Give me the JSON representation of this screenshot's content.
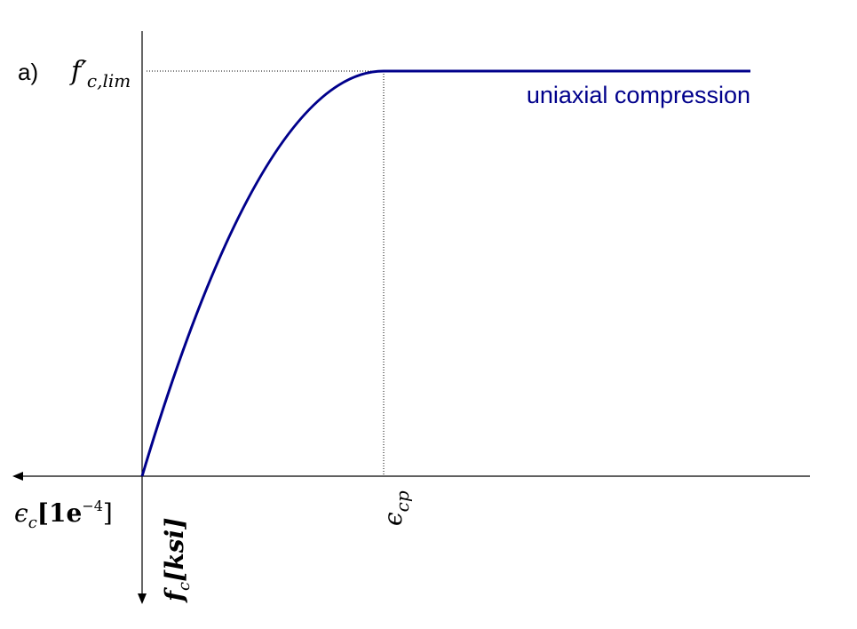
{
  "panel_label": "a)",
  "curve_label": "uniaxial compression",
  "peak_stress_label": {
    "symbol": "f′",
    "subscript": "c,lim"
  },
  "peak_strain_label": {
    "symbol": "ϵ",
    "subscript": "cp"
  },
  "x_axis_label": {
    "symbol": "ϵ",
    "subscript": "c",
    "unit_open": "[1e",
    "exponent": "−4",
    "unit_close": "]"
  },
  "y_axis_label": {
    "symbol": "f",
    "subscript": "c",
    "unit": "[ksi]"
  }
}
